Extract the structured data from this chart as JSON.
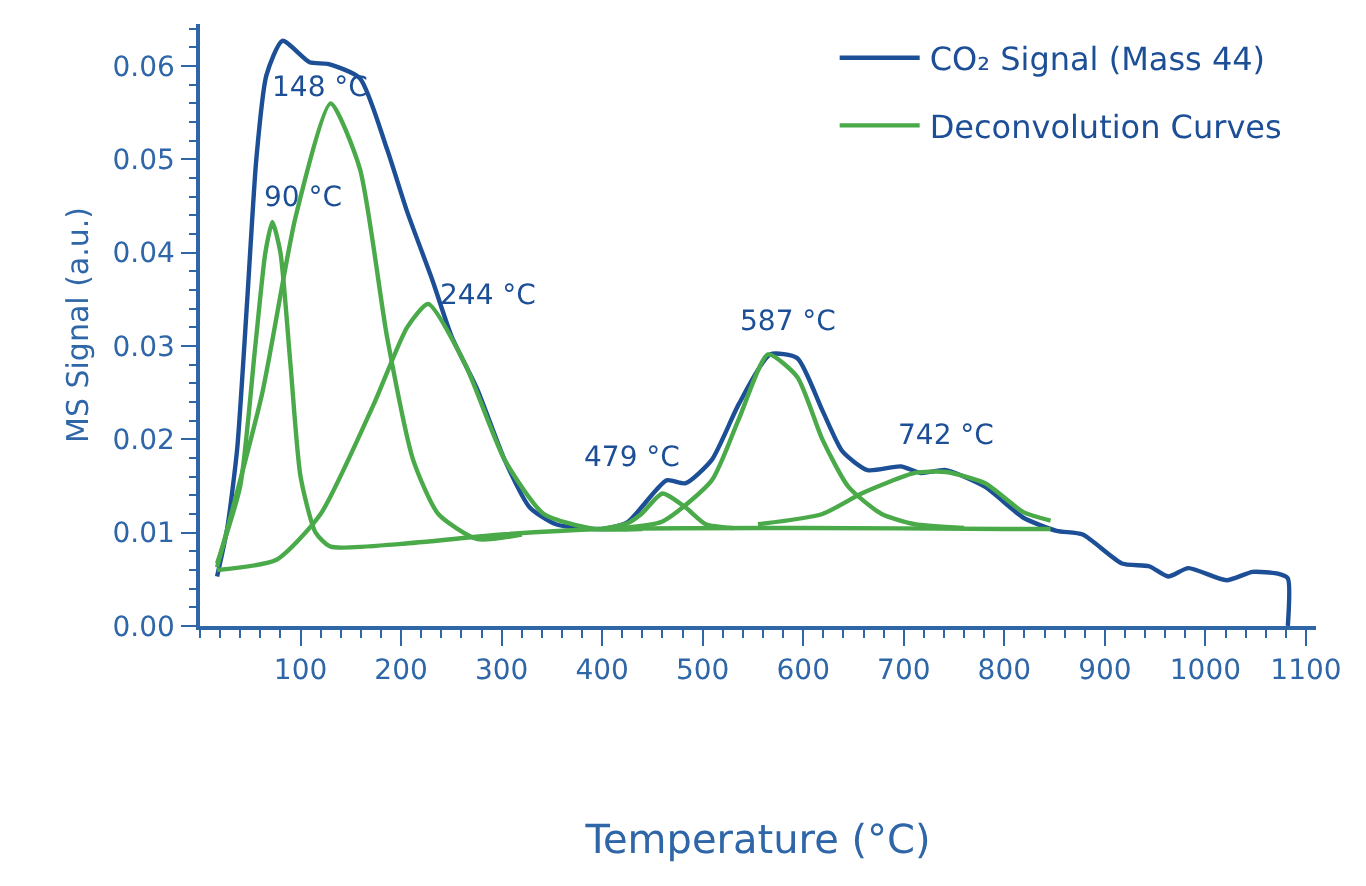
{
  "chart_data": {
    "type": "line",
    "xlabel": "Temperature (°C)",
    "ylabel": "MS Signal (a.u.)",
    "xlim": [
      0,
      1110
    ],
    "xticks": [
      100,
      200,
      300,
      400,
      500,
      600,
      700,
      800,
      900,
      1000,
      1100
    ],
    "ylim": [
      0,
      0.0645
    ],
    "yticks": [
      {
        "value": 0,
        "label": "0.00"
      },
      0.01,
      0.02,
      0.03,
      0.04,
      0.05,
      0.06
    ],
    "legend": "top right",
    "marker": "none",
    "line_style": "solid",
    "series": [
      {
        "name": "CO₂ Signal (Mass 44)",
        "color": "#1d4f97",
        "x": [
          17,
          27,
          37,
          47,
          56,
          66,
          82,
          109,
          128,
          159,
          186,
          206,
          231,
          250,
          276,
          303,
          328,
          354,
          400,
          425,
          464,
          483,
          509,
          536,
          567,
          594,
          619,
          639,
          664,
          697,
          717,
          742,
          781,
          819,
          852,
          878,
          917,
          944,
          963,
          983,
          1021,
          1047,
          1072,
          1082,
          1082
        ],
        "values": [
          0.0053,
          0.0104,
          0.019,
          0.035,
          0.05,
          0.059,
          0.0627,
          0.0604,
          0.0602,
          0.0587,
          0.0511,
          0.0444,
          0.0371,
          0.0311,
          0.0253,
          0.0178,
          0.0127,
          0.0109,
          0.0104,
          0.0111,
          0.0156,
          0.0153,
          0.0178,
          0.0238,
          0.0291,
          0.0287,
          0.0231,
          0.0187,
          0.0167,
          0.0171,
          0.0164,
          0.0167,
          0.0149,
          0.0116,
          0.0102,
          0.0098,
          0.0067,
          0.0064,
          0.0053,
          0.0062,
          0.0049,
          0.0058,
          0.0056,
          0.0051,
          0.0
        ]
      },
      {
        "name": "Deconvolution Curves",
        "color": "#4aaa4a",
        "x": [
          17,
          40,
          55,
          65,
          72,
          80,
          90,
          100,
          115,
          130,
          200,
          300,
          400,
          600,
          800,
          846
        ],
        "values": [
          0.0067,
          0.015,
          0.03,
          0.04,
          0.0433,
          0.04,
          0.028,
          0.016,
          0.01,
          0.0085,
          0.0088,
          0.0098,
          0.0104,
          0.0105,
          0.0104,
          0.0104
        ]
      },
      {
        "color": "#4aaa4a",
        "x": [
          17,
          62,
          95,
          130,
          159,
          186,
          212,
          237,
          276,
          320
        ],
        "values": [
          0.0063,
          0.025,
          0.0438,
          0.056,
          0.049,
          0.031,
          0.0178,
          0.012,
          0.0093,
          0.0098
        ]
      },
      {
        "color": "#4aaa4a",
        "x": [
          17,
          76,
          120,
          173,
          206,
          227,
          264,
          303,
          342,
          392,
          440
        ],
        "values": [
          0.006,
          0.0071,
          0.012,
          0.0238,
          0.032,
          0.0345,
          0.028,
          0.0178,
          0.012,
          0.0104,
          0.0104
        ]
      },
      {
        "color": "#4aaa4a",
        "x": [
          400,
          425,
          439,
          460,
          483,
          503,
          530
        ],
        "values": [
          0.0104,
          0.011,
          0.012,
          0.0142,
          0.0127,
          0.0109,
          0.0105
        ]
      },
      {
        "color": "#4aaa4a",
        "x": [
          420,
          460,
          509,
          536,
          565,
          594,
          619,
          645,
          678,
          711,
          760
        ],
        "values": [
          0.0105,
          0.0112,
          0.0156,
          0.0222,
          0.0291,
          0.0267,
          0.02,
          0.0149,
          0.012,
          0.0109,
          0.0105
        ]
      },
      {
        "color": "#4aaa4a",
        "x": [
          555,
          619,
          658,
          711,
          742,
          781,
          819,
          846
        ],
        "values": [
          0.0109,
          0.012,
          0.0142,
          0.0164,
          0.0165,
          0.0153,
          0.0122,
          0.0113
        ]
      }
    ],
    "annotations": [
      {
        "text": "90 °C",
        "x": 72,
        "y": 0.0433
      },
      {
        "text": "148 °C",
        "x": 130,
        "y": 0.056
      },
      {
        "text": "244 °C",
        "x": 227,
        "y": 0.0345
      },
      {
        "text": "479 °C",
        "x": 460,
        "y": 0.0142
      },
      {
        "text": "587 °C",
        "x": 565,
        "y": 0.0291
      },
      {
        "text": "742 °C",
        "x": 742,
        "y": 0.0165
      }
    ]
  }
}
